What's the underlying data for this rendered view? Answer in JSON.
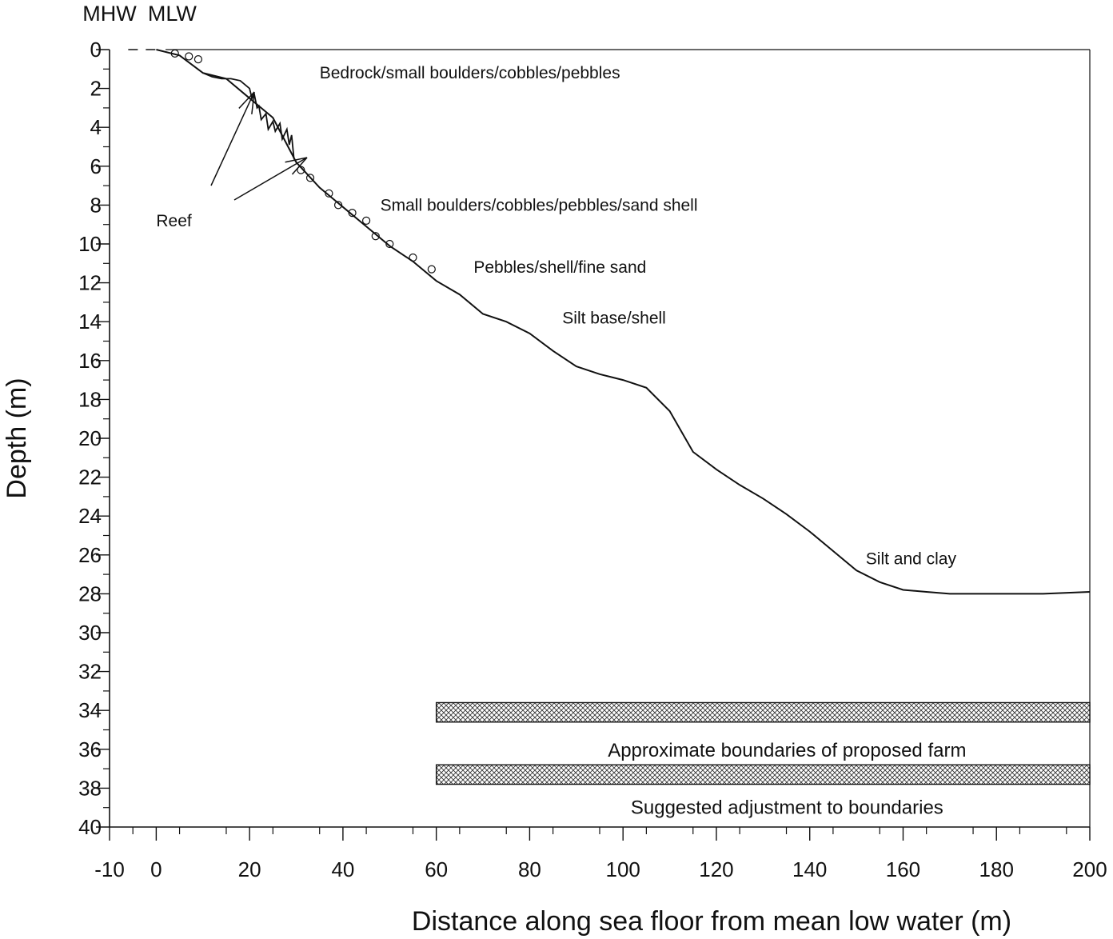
{
  "chart_data": {
    "type": "line",
    "xlabel": "Distance along sea floor from mean low water (m)",
    "ylabel": "Depth (m)",
    "xlim": [
      -10,
      200
    ],
    "ylim": [
      0,
      40
    ],
    "y_inverted": true,
    "x_ticks": [
      -10,
      0,
      20,
      40,
      60,
      80,
      100,
      120,
      140,
      160,
      180,
      200
    ],
    "y_ticks": [
      0,
      2,
      4,
      6,
      8,
      10,
      12,
      14,
      16,
      18,
      20,
      22,
      24,
      26,
      28,
      30,
      32,
      34,
      36,
      38,
      40
    ],
    "grid": false,
    "reference_labels": [
      {
        "text": "MHW",
        "x": -10
      },
      {
        "text": "MLW",
        "x": 0
      }
    ],
    "series": [
      {
        "x": [
          0,
          5,
          10,
          15,
          20,
          25,
          30,
          35,
          40,
          45,
          50,
          55,
          60,
          65,
          70,
          75,
          80,
          85,
          90,
          95,
          100,
          105,
          110,
          115,
          120,
          125,
          130,
          135,
          140,
          145,
          150,
          155,
          160,
          165,
          170,
          180,
          190,
          200
        ],
        "y": [
          0,
          0.3,
          1.2,
          1.5,
          2.5,
          3.5,
          5.8,
          7.1,
          8.1,
          9.1,
          10.1,
          10.9,
          11.9,
          12.6,
          13.6,
          14.0,
          14.6,
          15.5,
          16.3,
          16.7,
          17.0,
          17.4,
          18.6,
          20.7,
          21.6,
          22.4,
          23.1,
          23.9,
          24.8,
          25.8,
          26.8,
          27.4,
          27.8,
          27.9,
          28.0,
          28.0,
          28.0,
          27.9
        ]
      }
    ],
    "substrate_annotations": [
      {
        "text": "Bedrock/small boulders/cobbles/pebbles",
        "x": 35,
        "y": 1.2
      },
      {
        "text": "Small boulders/cobbles/pebbles/sand shell",
        "x": 48,
        "y": 8.0
      },
      {
        "text": "Pebbles/shell/fine sand",
        "x": 68,
        "y": 11.2
      },
      {
        "text": "Silt base/shell",
        "x": 87,
        "y": 13.8
      },
      {
        "text": "Silt and clay",
        "x": 152,
        "y": 26.2
      },
      {
        "text": "Reef",
        "x": 0,
        "y": 8.8
      }
    ],
    "boundary_bars": [
      {
        "label": "Approximate boundaries of proposed farm",
        "x_start": 60,
        "x_end": 200,
        "y_top": 33.6,
        "y_bottom": 34.6
      },
      {
        "label": "Suggested adjustment to boundaries",
        "x_start": 60,
        "x_end": 200,
        "y_top": 36.8,
        "y_bottom": 37.8
      }
    ]
  }
}
